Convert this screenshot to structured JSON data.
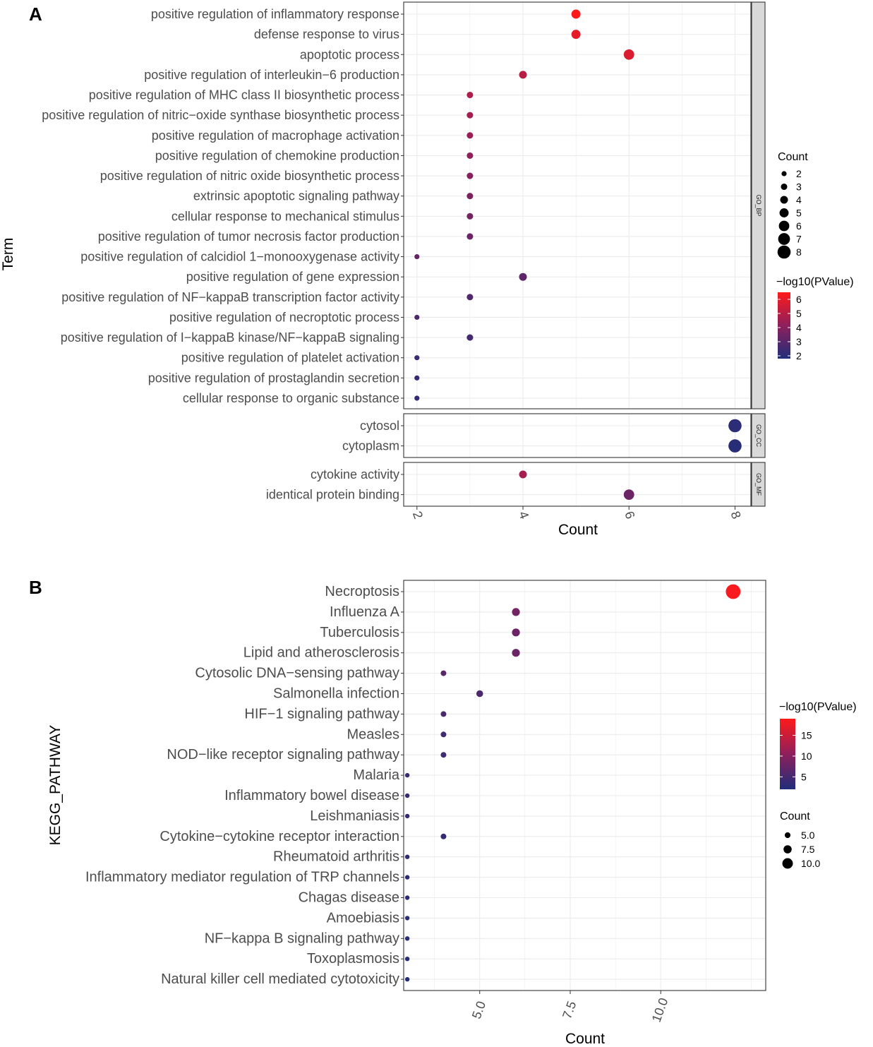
{
  "chart_data": [
    {
      "id": "A",
      "panel_label": "A",
      "type": "scatter",
      "subtype": "faceted dot plot",
      "xlabel": "Count",
      "ylabel": "Term",
      "xlim": [
        1.75,
        8.3
      ],
      "x_ticks": [
        2,
        4,
        6,
        8
      ],
      "x_tick_labels": [
        "2",
        "4",
        "6",
        "8"
      ],
      "grid": true,
      "facets": [
        {
          "name": "GO_BP",
          "terms": [
            {
              "term": "positive regulation of inflammatory response",
              "count": 5,
              "logp": 6.5
            },
            {
              "term": "defense response to virus",
              "count": 5,
              "logp": 6.0
            },
            {
              "term": "apoptotic process",
              "count": 6,
              "logp": 5.7
            },
            {
              "term": "positive regulation of interleukin−6 production",
              "count": 4,
              "logp": 5.0
            },
            {
              "term": "positive regulation of MHC class II biosynthetic process",
              "count": 3,
              "logp": 4.8
            },
            {
              "term": "positive regulation of nitric−oxide synthase biosynthetic process",
              "count": 3,
              "logp": 4.6
            },
            {
              "term": "positive regulation of macrophage activation",
              "count": 3,
              "logp": 4.4
            },
            {
              "term": "positive regulation of chemokine production",
              "count": 3,
              "logp": 4.2
            },
            {
              "term": "positive regulation of nitric oxide biosynthetic process",
              "count": 3,
              "logp": 4.0
            },
            {
              "term": "extrinsic apoptotic signaling pathway",
              "count": 3,
              "logp": 3.8
            },
            {
              "term": "cellular response to mechanical stimulus",
              "count": 3,
              "logp": 3.6
            },
            {
              "term": "positive regulation of tumor necrosis factor production",
              "count": 3,
              "logp": 3.4
            },
            {
              "term": "positive regulation of calcidiol 1−monooxygenase activity",
              "count": 2,
              "logp": 3.3
            },
            {
              "term": "positive regulation of gene expression",
              "count": 4,
              "logp": 3.1
            },
            {
              "term": "positive regulation of NF−kappaB transcription factor activity",
              "count": 3,
              "logp": 2.9
            },
            {
              "term": "positive regulation of necroptotic process",
              "count": 2,
              "logp": 2.8
            },
            {
              "term": "positive regulation of I−kappaB kinase/NF−kappaB signaling",
              "count": 3,
              "logp": 2.6
            },
            {
              "term": "positive regulation of platelet activation",
              "count": 2,
              "logp": 2.4
            },
            {
              "term": "positive regulation of prostaglandin secretion",
              "count": 2,
              "logp": 2.3
            },
            {
              "term": "cellular response to organic substance",
              "count": 2,
              "logp": 2.2
            }
          ]
        },
        {
          "name": "GO_CC",
          "terms": [
            {
              "term": "cytosol",
              "count": 8,
              "logp": 2.1
            },
            {
              "term": "cytoplasm",
              "count": 8,
              "logp": 2.0
            }
          ]
        },
        {
          "name": "GO_MF",
          "terms": [
            {
              "term": "cytokine activity",
              "count": 4,
              "logp": 4.6
            },
            {
              "term": "identical protein binding",
              "count": 6,
              "logp": 3.4
            }
          ]
        }
      ],
      "size_legend": {
        "title": "Count",
        "values": [
          2,
          3,
          4,
          5,
          6,
          7,
          8
        ],
        "labels": [
          "2",
          "3",
          "4",
          "5",
          "6",
          "7",
          "8"
        ]
      },
      "color_legend": {
        "title": "−log10(PValue)",
        "range": [
          1.8,
          6.5
        ],
        "ticks": [
          6,
          5,
          4,
          3,
          2
        ],
        "labels": [
          "6",
          "5",
          "4",
          "3",
          "2"
        ],
        "low_color": "#1f2e7a",
        "high_color": "#ff1a1a"
      }
    },
    {
      "id": "B",
      "panel_label": "B",
      "type": "scatter",
      "subtype": "dot plot",
      "xlabel": "Count",
      "ylabel": "KEGG_PATHWAY",
      "xlim": [
        2.9,
        12.9
      ],
      "x_ticks": [
        5.0,
        7.5,
        10.0
      ],
      "x_tick_labels": [
        "5.0",
        "7.5",
        "10.0"
      ],
      "grid": true,
      "terms": [
        {
          "term": "Necroptosis",
          "count": 12,
          "logp": 18.5
        },
        {
          "term": "Influenza A",
          "count": 6,
          "logp": 8.5
        },
        {
          "term": "Tuberculosis",
          "count": 6,
          "logp": 8.0
        },
        {
          "term": "Lipid and atherosclerosis",
          "count": 6,
          "logp": 7.8
        },
        {
          "term": "Cytosolic DNA−sensing pathway",
          "count": 4,
          "logp": 6.5
        },
        {
          "term": "Salmonella infection",
          "count": 5,
          "logp": 5.5
        },
        {
          "term": "HIF−1 signaling pathway",
          "count": 4,
          "logp": 5.0
        },
        {
          "term": "Measles",
          "count": 4,
          "logp": 4.8
        },
        {
          "term": "NOD−like receptor signaling pathway",
          "count": 4,
          "logp": 4.5
        },
        {
          "term": "Malaria",
          "count": 3,
          "logp": 4.2
        },
        {
          "term": "Inflammatory bowel disease",
          "count": 3,
          "logp": 3.9
        },
        {
          "term": "Leishmaniasis",
          "count": 3,
          "logp": 3.6
        },
        {
          "term": "Cytokine−cytokine receptor interaction",
          "count": 4,
          "logp": 3.5
        },
        {
          "term": "Rheumatoid arthritis",
          "count": 3,
          "logp": 3.2
        },
        {
          "term": "Inflammatory mediator regulation of TRP channels",
          "count": 3,
          "logp": 3.0
        },
        {
          "term": "Chagas disease",
          "count": 3,
          "logp": 2.9
        },
        {
          "term": "Amoebiasis",
          "count": 3,
          "logp": 2.8
        },
        {
          "term": "NF−kappa B signaling pathway",
          "count": 3,
          "logp": 2.7
        },
        {
          "term": "Toxoplasmosis",
          "count": 3,
          "logp": 2.6
        },
        {
          "term": "Natural killer cell mediated cytotoxicity",
          "count": 3,
          "logp": 2.5
        }
      ],
      "size_legend": {
        "title": "Count",
        "values": [
          5.0,
          7.5,
          10.0
        ],
        "labels": [
          "5.0",
          "7.5",
          "10.0"
        ]
      },
      "color_legend": {
        "title": "−log10(PValue)",
        "range": [
          2.0,
          19.0
        ],
        "ticks": [
          15,
          10,
          5
        ],
        "labels": [
          "15",
          "10",
          "5"
        ],
        "low_color": "#1f2e7a",
        "high_color": "#ff1a1a"
      }
    }
  ]
}
